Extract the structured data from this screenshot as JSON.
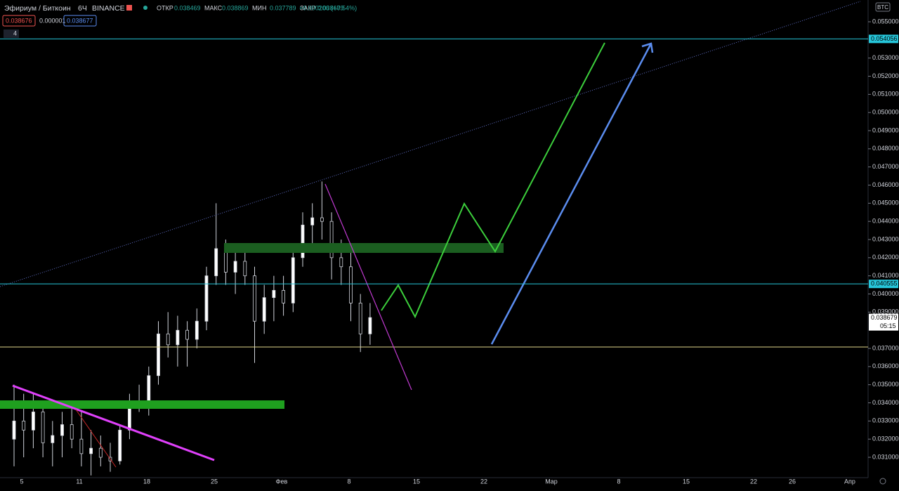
{
  "header": {
    "symbol": "Эфириум / Биткоин",
    "interval": "6Ч",
    "exchange": "BINANCE",
    "ohlc": [
      {
        "label": "ОТКР",
        "value": "0.038469"
      },
      {
        "label": "МАКС",
        "value": "0.038869"
      },
      {
        "label": "МИН",
        "value": "0.037789"
      },
      {
        "label": "ЗАКР",
        "value": "0.038679"
      }
    ],
    "change": "+0.000206 (+0.54%)",
    "bid": "0.038676",
    "spread": "0.000001",
    "ask": "0.038677",
    "indicator_count": "4"
  },
  "price_axis": {
    "currency": "BTC",
    "ylim": [
      0.0309,
      0.0562
    ],
    "ticks": [
      {
        "value": 0.031,
        "label": "0.031000"
      },
      {
        "value": 0.032,
        "label": "0.032000"
      },
      {
        "value": 0.033,
        "label": "0.033000"
      },
      {
        "value": 0.034,
        "label": "0.034000"
      },
      {
        "value": 0.035,
        "label": "0.035000"
      },
      {
        "value": 0.036,
        "label": "0.036000"
      },
      {
        "value": 0.037,
        "label": "0.037000"
      },
      {
        "value": 0.039,
        "label": "0.039000"
      },
      {
        "value": 0.04,
        "label": "0.040000"
      },
      {
        "value": 0.041,
        "label": "0.041000"
      },
      {
        "value": 0.042,
        "label": "0.042000"
      },
      {
        "value": 0.043,
        "label": "0.043000"
      },
      {
        "value": 0.044,
        "label": "0.044000"
      },
      {
        "value": 0.045,
        "label": "0.045000"
      },
      {
        "value": 0.046,
        "label": "0.046000"
      },
      {
        "value": 0.047,
        "label": "0.047000"
      },
      {
        "value": 0.048,
        "label": "0.048000"
      },
      {
        "value": 0.049,
        "label": "0.049000"
      },
      {
        "value": 0.05,
        "label": "0.050000"
      },
      {
        "value": 0.051,
        "label": "0.051000"
      },
      {
        "value": 0.052,
        "label": "0.052000"
      },
      {
        "value": 0.053,
        "label": "0.053000"
      },
      {
        "value": 0.055,
        "label": "0.055000"
      }
    ],
    "levels": [
      {
        "value": 0.054056,
        "label": "0.054056",
        "color": "#26c6da"
      },
      {
        "value": 0.040555,
        "label": "0.040555",
        "color": "#26c6da"
      }
    ],
    "last_price": {
      "value": 0.038679,
      "label": "0.038679",
      "countdown": "05:15"
    }
  },
  "time_axis": {
    "labels": [
      "5",
      "11",
      "18",
      "25",
      "Фев",
      "8",
      "15",
      "22",
      "Мар",
      "8",
      "15",
      "22",
      "26",
      "Апр"
    ]
  },
  "candles": [
    [
      0.032,
      0.035,
      0.0305,
      0.033
    ],
    [
      0.033,
      0.0345,
      0.031,
      0.0325
    ],
    [
      0.0325,
      0.0345,
      0.0315,
      0.0335
    ],
    [
      0.0335,
      0.034,
      0.031,
      0.0318
    ],
    [
      0.0318,
      0.033,
      0.0305,
      0.0322
    ],
    [
      0.0322,
      0.0335,
      0.031,
      0.0328
    ],
    [
      0.0328,
      0.034,
      0.0315,
      0.032
    ],
    [
      0.032,
      0.0335,
      0.0305,
      0.0312
    ],
    [
      0.0312,
      0.0325,
      0.03,
      0.0315
    ],
    [
      0.0315,
      0.0322,
      0.0305,
      0.031
    ],
    [
      0.031,
      0.0318,
      0.0302,
      0.0308
    ],
    [
      0.0308,
      0.0328,
      0.0306,
      0.0325
    ],
    [
      0.0325,
      0.0345,
      0.032,
      0.034
    ],
    [
      0.034,
      0.035,
      0.0335,
      0.0338
    ],
    [
      0.0338,
      0.036,
      0.0333,
      0.0355
    ],
    [
      0.0355,
      0.0385,
      0.035,
      0.0378
    ],
    [
      0.0378,
      0.039,
      0.0365,
      0.0372
    ],
    [
      0.0372,
      0.0388,
      0.036,
      0.038
    ],
    [
      0.038,
      0.0385,
      0.036,
      0.0375
    ],
    [
      0.0375,
      0.0392,
      0.037,
      0.0385
    ],
    [
      0.0385,
      0.0415,
      0.038,
      0.041
    ],
    [
      0.041,
      0.045,
      0.0405,
      0.0425
    ],
    [
      0.0425,
      0.043,
      0.0405,
      0.0412
    ],
    [
      0.0412,
      0.0425,
      0.04,
      0.0418
    ],
    [
      0.0418,
      0.0425,
      0.0405,
      0.041
    ],
    [
      0.041,
      0.0415,
      0.0362,
      0.0385
    ],
    [
      0.0385,
      0.0405,
      0.0378,
      0.0398
    ],
    [
      0.0398,
      0.041,
      0.0385,
      0.0402
    ],
    [
      0.0402,
      0.041,
      0.0388,
      0.0395
    ],
    [
      0.0395,
      0.0425,
      0.039,
      0.042
    ],
    [
      0.042,
      0.0445,
      0.0415,
      0.0438
    ],
    [
      0.0438,
      0.045,
      0.0425,
      0.0442
    ],
    [
      0.0442,
      0.0462,
      0.043,
      0.044
    ],
    [
      0.044,
      0.0445,
      0.0408,
      0.042
    ],
    [
      0.042,
      0.043,
      0.0405,
      0.0415
    ],
    [
      0.0415,
      0.0425,
      0.0385,
      0.0395
    ],
    [
      0.0395,
      0.04,
      0.0368,
      0.0378
    ],
    [
      0.0378,
      0.0395,
      0.0372,
      0.0387
    ]
  ]
}
